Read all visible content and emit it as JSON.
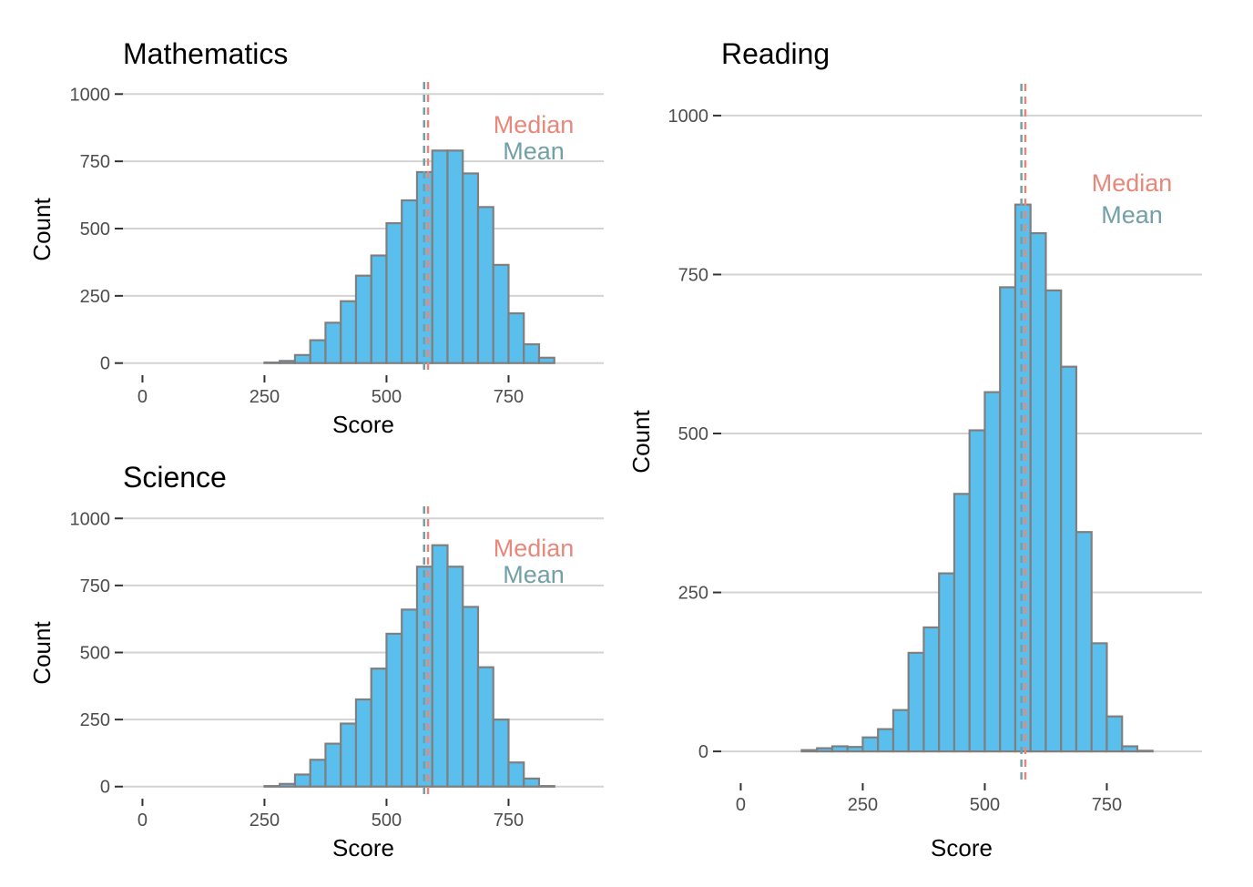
{
  "colors": {
    "bar_fill": "#5bbfee",
    "bar_stroke": "#7f7f7f",
    "median": "#e8877a",
    "mean": "#72a0a6",
    "grid": "#d3d3d3",
    "tick_label": "#4d4d4d"
  },
  "chart_data": [
    {
      "type": "bar",
      "title": "Mathematics",
      "xlabel": "Score",
      "ylabel": "Count",
      "xlim": [
        -40,
        945
      ],
      "ylim": [
        -45,
        1045
      ],
      "x_ticks": [
        0,
        250,
        500,
        750
      ],
      "y_ticks": [
        0,
        250,
        500,
        750,
        1000
      ],
      "grid": "horizontal",
      "bin_width": 31.25,
      "bin_start": 0,
      "counts": [
        0,
        0,
        0,
        0,
        0,
        0,
        0,
        0,
        2,
        8,
        30,
        85,
        150,
        230,
        325,
        400,
        520,
        605,
        710,
        790,
        790,
        705,
        580,
        365,
        185,
        70,
        20,
        0
      ],
      "median": 585,
      "mean": 577,
      "legend": {
        "median": "Median",
        "mean": "Mean",
        "position": "top-right"
      }
    },
    {
      "type": "bar",
      "title": "Science",
      "xlabel": "Score",
      "ylabel": "Count",
      "xlim": [
        -40,
        945
      ],
      "ylim": [
        -45,
        1045
      ],
      "x_ticks": [
        0,
        250,
        500,
        750
      ],
      "y_ticks": [
        0,
        250,
        500,
        750,
        1000
      ],
      "grid": "horizontal",
      "bin_width": 31.25,
      "bin_start": 0,
      "counts": [
        0,
        0,
        0,
        0,
        0,
        0,
        0,
        0,
        2,
        10,
        45,
        100,
        160,
        235,
        325,
        440,
        570,
        660,
        820,
        900,
        820,
        670,
        445,
        250,
        90,
        30,
        2,
        0
      ],
      "median": 585,
      "mean": 577,
      "legend": {
        "median": "Median",
        "mean": "Mean",
        "position": "top-right"
      }
    },
    {
      "type": "bar",
      "title": "Reading",
      "xlabel": "Score",
      "ylabel": "Count",
      "xlim": [
        -40,
        945
      ],
      "ylim": [
        -50,
        1050
      ],
      "x_ticks": [
        0,
        250,
        500,
        750
      ],
      "y_ticks": [
        0,
        250,
        500,
        750,
        1000
      ],
      "grid": "horizontal",
      "bin_width": 31.25,
      "bin_start": 0,
      "counts": [
        0,
        0,
        0,
        0,
        2,
        5,
        8,
        7,
        22,
        35,
        65,
        155,
        195,
        280,
        405,
        505,
        565,
        730,
        860,
        815,
        725,
        605,
        345,
        170,
        55,
        8,
        1,
        0
      ],
      "median": 583,
      "mean": 575,
      "legend": {
        "median": "Median",
        "mean": "Mean",
        "position": "top-right"
      }
    }
  ]
}
